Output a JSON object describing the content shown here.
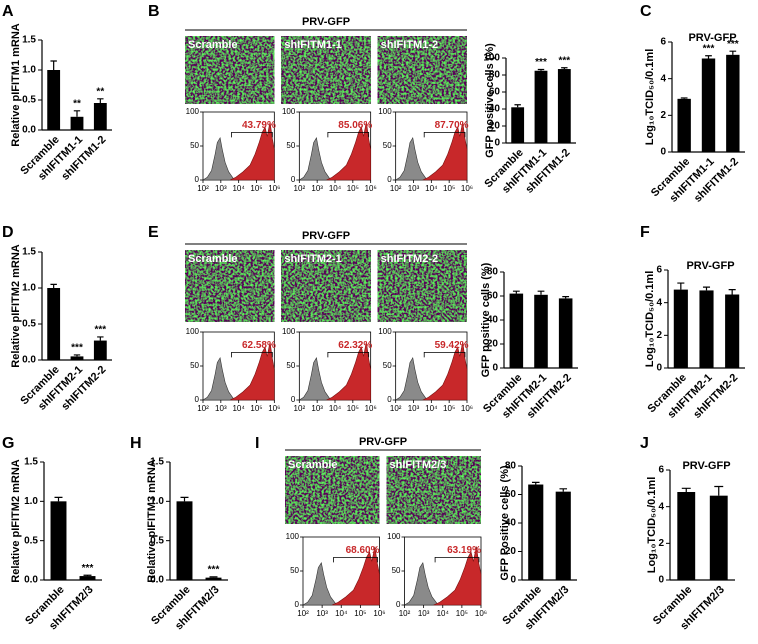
{
  "chart_data": [
    {
      "type": "bar",
      "panel": "A",
      "ylabel": "Relative pIFITM1 mRNA",
      "categories": [
        "Scramble",
        "shIFITM1-1",
        "shIFITM1-2"
      ],
      "values": [
        1.0,
        0.22,
        0.45
      ],
      "errors": [
        0.15,
        0.1,
        0.07
      ],
      "annotations": [
        null,
        "**",
        "**"
      ],
      "color": "#000000",
      "ylim": [
        0,
        1.5
      ],
      "yticks": [
        {
          "value": 0,
          "label": "0.0"
        },
        0.5,
        {
          "value": 1,
          "label": "1.0"
        },
        1.5
      ]
    },
    {
      "type": "flow",
      "panel": "B",
      "title": "PRV-GFP",
      "images": [
        "Scramble",
        "shIFITM1-1",
        "shIFITM1-2"
      ],
      "gates": [
        43.79,
        85.06,
        87.7
      ],
      "gate_labels": [
        "43.79%",
        "85.06%",
        "87.70%"
      ],
      "xlim": [
        100,
        1000000
      ],
      "xticks": [
        {
          "value": 100,
          "label": "10²"
        },
        {
          "value": 1000,
          "label": "10³"
        },
        {
          "value": 10000,
          "label": "10⁴"
        },
        {
          "value": 100000,
          "label": "10⁵"
        },
        {
          "value": 1000000,
          "label": "10⁶"
        }
      ],
      "ylim": [
        0,
        100
      ],
      "yticks": [
        0,
        50,
        100
      ]
    },
    {
      "type": "bar",
      "ylabel": "GFP positive cells (%)",
      "categories": [
        "Scramble",
        "shIFITM1-1",
        "shIFITM1-2"
      ],
      "values": [
        42,
        85,
        87
      ],
      "errors": [
        3,
        1.5,
        1.5
      ],
      "annotations": [
        null,
        "***",
        "***"
      ],
      "color": "#000000",
      "ylim": [
        0,
        100
      ],
      "yticks": [
        0,
        20,
        40,
        60,
        80,
        100
      ]
    },
    {
      "type": "bar",
      "panel": "C",
      "title": "PRV-GFP",
      "ylabel": "Log₁₀TCID₅₀/0.1ml",
      "categories": [
        "Scramble",
        "shIFITM1-1",
        "shIFITM1-2"
      ],
      "values": [
        2.9,
        5.1,
        5.3
      ],
      "errors": [
        0.05,
        0.15,
        0.2
      ],
      "annotations": [
        null,
        "***",
        "***"
      ],
      "color": "#000000",
      "ylim": [
        0,
        6
      ],
      "yticks": [
        0,
        2,
        4,
        6
      ]
    },
    {
      "type": "bar",
      "panel": "D",
      "ylabel": "Relative pIFITM2 mRNA",
      "categories": [
        "Scramble",
        "shIFITM2-1",
        "shIFITM2-2"
      ],
      "values": [
        1.0,
        0.05,
        0.27
      ],
      "errors": [
        0.05,
        0.02,
        0.05
      ],
      "annotations": [
        null,
        "***",
        "***"
      ],
      "color": "#000000",
      "ylim": [
        0,
        1.5
      ],
      "yticks": [
        {
          "value": 0,
          "label": "0.0"
        },
        0.5,
        {
          "value": 1,
          "label": "1.0"
        },
        1.5
      ]
    },
    {
      "type": "flow",
      "panel": "E",
      "title": "PRV-GFP",
      "images": [
        "Scramble",
        "shIFITM2-1",
        "shIFITM2-2"
      ],
      "gates": [
        62.58,
        62.32,
        59.42
      ],
      "gate_labels": [
        "62.58%",
        "62.32%",
        "59.42%"
      ],
      "xlim": [
        100,
        1000000
      ],
      "xticks": [
        {
          "value": 100,
          "label": "10²"
        },
        {
          "value": 1000,
          "label": "10³"
        },
        {
          "value": 10000,
          "label": "10⁴"
        },
        {
          "value": 100000,
          "label": "10⁵"
        },
        {
          "value": 1000000,
          "label": "10⁶"
        }
      ],
      "ylim": [
        0,
        100
      ],
      "yticks": [
        0,
        50,
        100
      ]
    },
    {
      "type": "bar",
      "ylabel": "GFP positive cells (%)",
      "categories": [
        "Scramble",
        "shIFITM2-1",
        "shIFITM2-2"
      ],
      "values": [
        62,
        61,
        58
      ],
      "errors": [
        2,
        3,
        1.5
      ],
      "color": "#000000",
      "ylim": [
        0,
        80
      ],
      "yticks": [
        0,
        20,
        40,
        60,
        80
      ]
    },
    {
      "type": "bar",
      "panel": "F",
      "title": "PRV-GFP",
      "ylabel": "Log₁₀TCID₅₀/0.1ml",
      "categories": [
        "Scramble",
        "shIFITM2-1",
        "shIFITM2-2"
      ],
      "values": [
        4.8,
        4.75,
        4.5
      ],
      "errors": [
        0.4,
        0.2,
        0.3
      ],
      "color": "#000000",
      "ylim": [
        0,
        6
      ],
      "yticks": [
        0,
        2,
        4,
        6
      ]
    },
    {
      "type": "bar",
      "panel": "G",
      "ylabel": "Relative pIFITM2 mRNA",
      "categories": [
        "Scramble",
        "shIFITM2/3"
      ],
      "values": [
        1.0,
        0.05
      ],
      "errors": [
        0.05,
        0.01
      ],
      "annotations": [
        null,
        "***"
      ],
      "color": "#000000",
      "ylim": [
        0,
        1.5
      ],
      "yticks": [
        {
          "value": 0,
          "label": "0.0"
        },
        0.5,
        {
          "value": 1,
          "label": "1.0"
        },
        1.5
      ]
    },
    {
      "type": "bar",
      "panel": "H",
      "ylabel": "Relative pIFITM3 mRNA",
      "categories": [
        "Scramble",
        "shIFITM2/3"
      ],
      "values": [
        1.0,
        0.03
      ],
      "errors": [
        0.05,
        0.01
      ],
      "annotations": [
        null,
        "***"
      ],
      "color": "#000000",
      "ylim": [
        0,
        1.5
      ],
      "yticks": [
        {
          "value": 0,
          "label": "0.0"
        },
        0.5,
        {
          "value": 1,
          "label": "1.0"
        },
        1.5
      ]
    },
    {
      "type": "flow",
      "panel": "I",
      "title": "PRV-GFP",
      "images": [
        "Scramble",
        "shIFITM2/3"
      ],
      "gates": [
        68.6,
        63.19
      ],
      "gate_labels": [
        "68.60%",
        "63.19%"
      ],
      "xlim": [
        100,
        1000000
      ],
      "xticks": [
        {
          "value": 100,
          "label": "10²"
        },
        {
          "value": 1000,
          "label": "10³"
        },
        {
          "value": 10000,
          "label": "10⁴"
        },
        {
          "value": 100000,
          "label": "10⁵"
        },
        {
          "value": 1000000,
          "label": "10⁶"
        }
      ],
      "ylim": [
        0,
        100
      ],
      "yticks": [
        0,
        50,
        100
      ]
    },
    {
      "type": "bar",
      "ylabel": "GFP Positive cells (%)",
      "categories": [
        "Scramble",
        "shIFITM2/3"
      ],
      "values": [
        67,
        62
      ],
      "errors": [
        1.5,
        2
      ],
      "color": "#000000",
      "ylim": [
        0,
        80
      ],
      "yticks": [
        0,
        20,
        40,
        60,
        80
      ]
    },
    {
      "type": "bar",
      "panel": "J",
      "title": "PRV-GFP",
      "ylabel": "Log₁₀TCID₅₀/0.1ml",
      "categories": [
        "Scramble",
        "shIFITM2/3"
      ],
      "values": [
        4.8,
        4.6
      ],
      "errors": [
        0.2,
        0.5
      ],
      "color": "#000000",
      "ylim": [
        0,
        6
      ],
      "yticks": [
        0,
        2,
        4,
        6
      ]
    }
  ]
}
